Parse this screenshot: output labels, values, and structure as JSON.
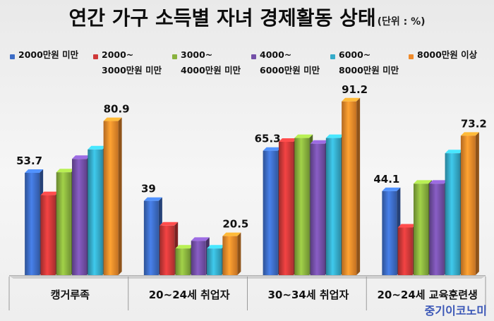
{
  "title": "연간 가구 소득별 자녀 경제활동 상태",
  "unit": "(단위 : %)",
  "watermark": "중기이코노미",
  "legend": [
    {
      "label": "2000만원 미만",
      "color": "#3d6dc7"
    },
    {
      "label": "2000~\n3000만원 미만",
      "color": "#cf3939"
    },
    {
      "label": "3000~\n4000만원 미만",
      "color": "#89b23e"
    },
    {
      "label": "4000~\n6000만원 미만",
      "color": "#7450a8"
    },
    {
      "label": "6000~\n8000만원 미만",
      "color": "#35abc9"
    },
    {
      "label": "8000만원 이상",
      "color": "#ef8a2a"
    }
  ],
  "chart_data": {
    "type": "bar",
    "title": "연간 가구 소득별 자녀 경제활동 상태",
    "xlabel": "",
    "ylabel": "",
    "unit": "%",
    "ylim": [
      0,
      100
    ],
    "grid": false,
    "legend_position": "top",
    "categories": [
      "캥거루족",
      "20~24세 취업자",
      "30~34세 취업자",
      "20~24세 교육훈련생"
    ],
    "series": [
      {
        "name": "2000만원 미만",
        "color": "#3d6dc7",
        "values": [
          53.7,
          39,
          65.3,
          44.1
        ]
      },
      {
        "name": "2000~3000만원 미만",
        "color": "#cf3939",
        "values": [
          42,
          26,
          70,
          25
        ]
      },
      {
        "name": "3000~4000만원 미만",
        "color": "#89b23e",
        "values": [
          54,
          14,
          72,
          48
        ]
      },
      {
        "name": "4000~6000만원 미만",
        "color": "#7450a8",
        "values": [
          61,
          18,
          69,
          48
        ]
      },
      {
        "name": "6000~8000만원 미만",
        "color": "#35abc9",
        "values": [
          66,
          14,
          72,
          64
        ]
      },
      {
        "name": "8000만원 이상",
        "color": "#ef8a2a",
        "values": [
          80.9,
          20.5,
          91.2,
          73.2
        ]
      }
    ],
    "data_labels": [
      {
        "category_index": 0,
        "series_index": 0,
        "text": "53.7"
      },
      {
        "category_index": 0,
        "series_index": 5,
        "text": "80.9"
      },
      {
        "category_index": 1,
        "series_index": 0,
        "text": "39"
      },
      {
        "category_index": 1,
        "series_index": 5,
        "text": "20.5"
      },
      {
        "category_index": 2,
        "series_index": 0,
        "text": "65.3"
      },
      {
        "category_index": 2,
        "series_index": 5,
        "text": "91.2"
      },
      {
        "category_index": 3,
        "series_index": 0,
        "text": "44.1"
      },
      {
        "category_index": 3,
        "series_index": 5,
        "text": "73.2"
      }
    ]
  }
}
